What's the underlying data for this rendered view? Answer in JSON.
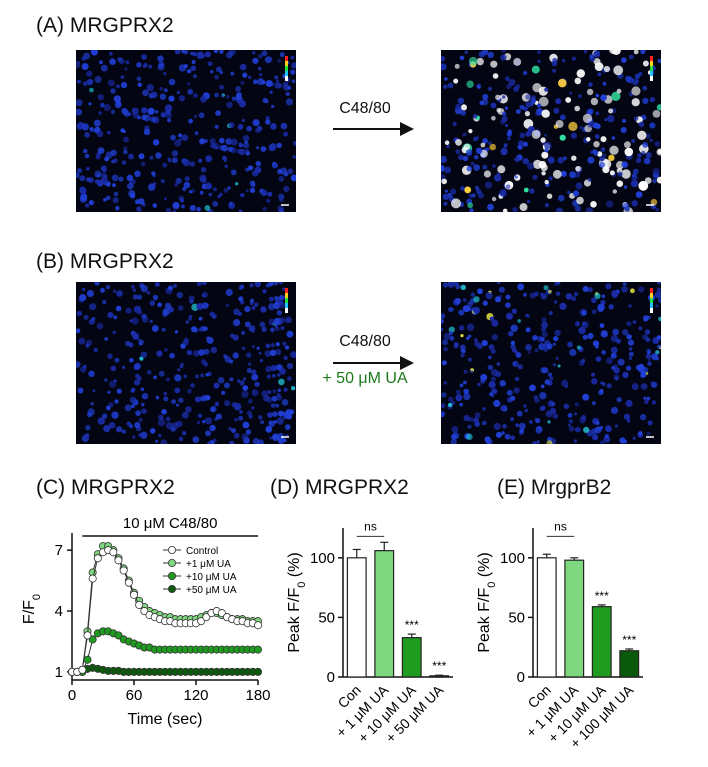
{
  "panels": {
    "a": {
      "label": "(A) MRGPRX2",
      "arrow_label": "C48/80"
    },
    "b": {
      "label": "(B) MRGPRX2",
      "arrow_label": "C48/80",
      "arrow_sublabel": "+ 50 μM UA"
    },
    "c": {
      "label": "(C) MRGPRX2"
    },
    "d": {
      "label": "(D) MRGPRX2"
    },
    "e": {
      "label": "(E) MrgprB2"
    }
  },
  "colors": {
    "control": "#ffffff",
    "ua1": "#7fd77f",
    "ua10": "#1f9b1f",
    "ua50": "#0b5a0b",
    "ua100": "#0b5a0b"
  },
  "chart_data": [
    {
      "id": "c",
      "type": "line",
      "title": "10 μM C48/80",
      "xlabel": "Time (sec)",
      "ylabel": "F/F0",
      "xlim": [
        0,
        180
      ],
      "ylim": [
        0.6,
        7.6
      ],
      "xticks": [
        0,
        60,
        120,
        180
      ],
      "yticks": [
        1,
        4,
        7
      ],
      "stimulus_bar": [
        10,
        180
      ],
      "legend_position": "top-right",
      "series": [
        {
          "name": "Control",
          "fill": "#ffffff",
          "x": [
            0,
            5,
            10,
            15,
            20,
            25,
            30,
            35,
            40,
            45,
            50,
            55,
            60,
            65,
            70,
            75,
            80,
            85,
            90,
            95,
            100,
            105,
            110,
            115,
            120,
            125,
            130,
            135,
            140,
            145,
            150,
            155,
            160,
            165,
            170,
            175,
            180
          ],
          "y": [
            1,
            1,
            1.1,
            2.8,
            5.6,
            6.6,
            6.9,
            7.0,
            6.9,
            6.5,
            6.0,
            5.4,
            4.8,
            4.3,
            4.0,
            3.8,
            3.7,
            3.6,
            3.5,
            3.5,
            3.4,
            3.4,
            3.4,
            3.4,
            3.4,
            3.5,
            3.7,
            3.9,
            4.0,
            3.9,
            3.7,
            3.6,
            3.5,
            3.5,
            3.4,
            3.4,
            3.3
          ]
        },
        {
          "name": "+1 μM UA",
          "fill": "#7fd77f",
          "x": [
            0,
            5,
            10,
            15,
            20,
            25,
            30,
            35,
            40,
            45,
            50,
            55,
            60,
            65,
            70,
            75,
            80,
            85,
            90,
            95,
            100,
            105,
            110,
            115,
            120,
            125,
            130,
            135,
            140,
            145,
            150,
            155,
            160,
            165,
            170,
            175,
            180
          ],
          "y": [
            1,
            1,
            1.1,
            3.0,
            5.9,
            6.8,
            7.2,
            7.2,
            7.0,
            6.6,
            6.1,
            5.5,
            4.9,
            4.5,
            4.2,
            4.0,
            3.9,
            3.8,
            3.7,
            3.7,
            3.6,
            3.6,
            3.6,
            3.6,
            3.6,
            3.7,
            3.8,
            3.9,
            3.9,
            3.8,
            3.7,
            3.6,
            3.6,
            3.6,
            3.5,
            3.5,
            3.5
          ]
        },
        {
          "name": "+10 μM UA",
          "fill": "#1f9b1f",
          "x": [
            0,
            5,
            10,
            15,
            20,
            25,
            30,
            35,
            40,
            45,
            50,
            55,
            60,
            65,
            70,
            75,
            80,
            85,
            90,
            95,
            100,
            105,
            110,
            115,
            120,
            125,
            130,
            135,
            140,
            145,
            150,
            155,
            160,
            165,
            170,
            175,
            180
          ],
          "y": [
            1,
            1,
            1.0,
            1.6,
            2.6,
            2.9,
            3.0,
            3.0,
            2.9,
            2.8,
            2.6,
            2.5,
            2.4,
            2.3,
            2.2,
            2.2,
            2.1,
            2.1,
            2.1,
            2.1,
            2.1,
            2.1,
            2.1,
            2.1,
            2.1,
            2.1,
            2.1,
            2.1,
            2.1,
            2.1,
            2.1,
            2.1,
            2.1,
            2.1,
            2.1,
            2.1,
            2.1
          ]
        },
        {
          "name": "+50 μM UA",
          "fill": "#0b5a0b",
          "x": [
            0,
            5,
            10,
            15,
            20,
            25,
            30,
            35,
            40,
            45,
            50,
            55,
            60,
            65,
            70,
            75,
            80,
            85,
            90,
            95,
            100,
            105,
            110,
            115,
            120,
            125,
            130,
            135,
            140,
            145,
            150,
            155,
            160,
            165,
            170,
            175,
            180
          ],
          "y": [
            1,
            1,
            1,
            1.15,
            1.2,
            1.15,
            1.1,
            1.05,
            1.05,
            1.05,
            1.0,
            1.0,
            1.0,
            1.0,
            1.0,
            1.0,
            1.0,
            1.0,
            1.0,
            1.0,
            1.0,
            1.0,
            1.0,
            1.0,
            1.0,
            1.0,
            1.0,
            1.0,
            1.0,
            1.0,
            1.0,
            1.0,
            1.0,
            1.0,
            1.0,
            1.0,
            1.0
          ]
        }
      ]
    },
    {
      "id": "d",
      "type": "bar",
      "ylabel": "Peak F/F0 (%)",
      "ylim": [
        0,
        125
      ],
      "yticks": [
        0,
        50,
        100
      ],
      "categories": [
        "Con",
        "+ 1 μM UA",
        "+ 10 μM UA",
        "+ 50 μM UA"
      ],
      "values": [
        100,
        106,
        33,
        1
      ],
      "errors": [
        7,
        7,
        3,
        0.5
      ],
      "fills": [
        "#ffffff",
        "#7fd77f",
        "#1f9b1f",
        "#0b5a0b"
      ],
      "significance": [
        "",
        "ns",
        "***",
        "***"
      ]
    },
    {
      "id": "e",
      "type": "bar",
      "ylabel": "Peak F/F0 (%)",
      "ylim": [
        0,
        125
      ],
      "yticks": [
        0,
        50,
        100
      ],
      "categories": [
        "Con",
        "+ 1 μM UA",
        "+ 10 μM UA",
        "+ 100 μM UA"
      ],
      "values": [
        100,
        98,
        59,
        22
      ],
      "errors": [
        3,
        2,
        1.5,
        1.5
      ],
      "fills": [
        "#ffffff",
        "#7fd77f",
        "#1f9b1f",
        "#0b5a0b"
      ],
      "significance": [
        "",
        "ns",
        "***",
        "***"
      ]
    }
  ]
}
